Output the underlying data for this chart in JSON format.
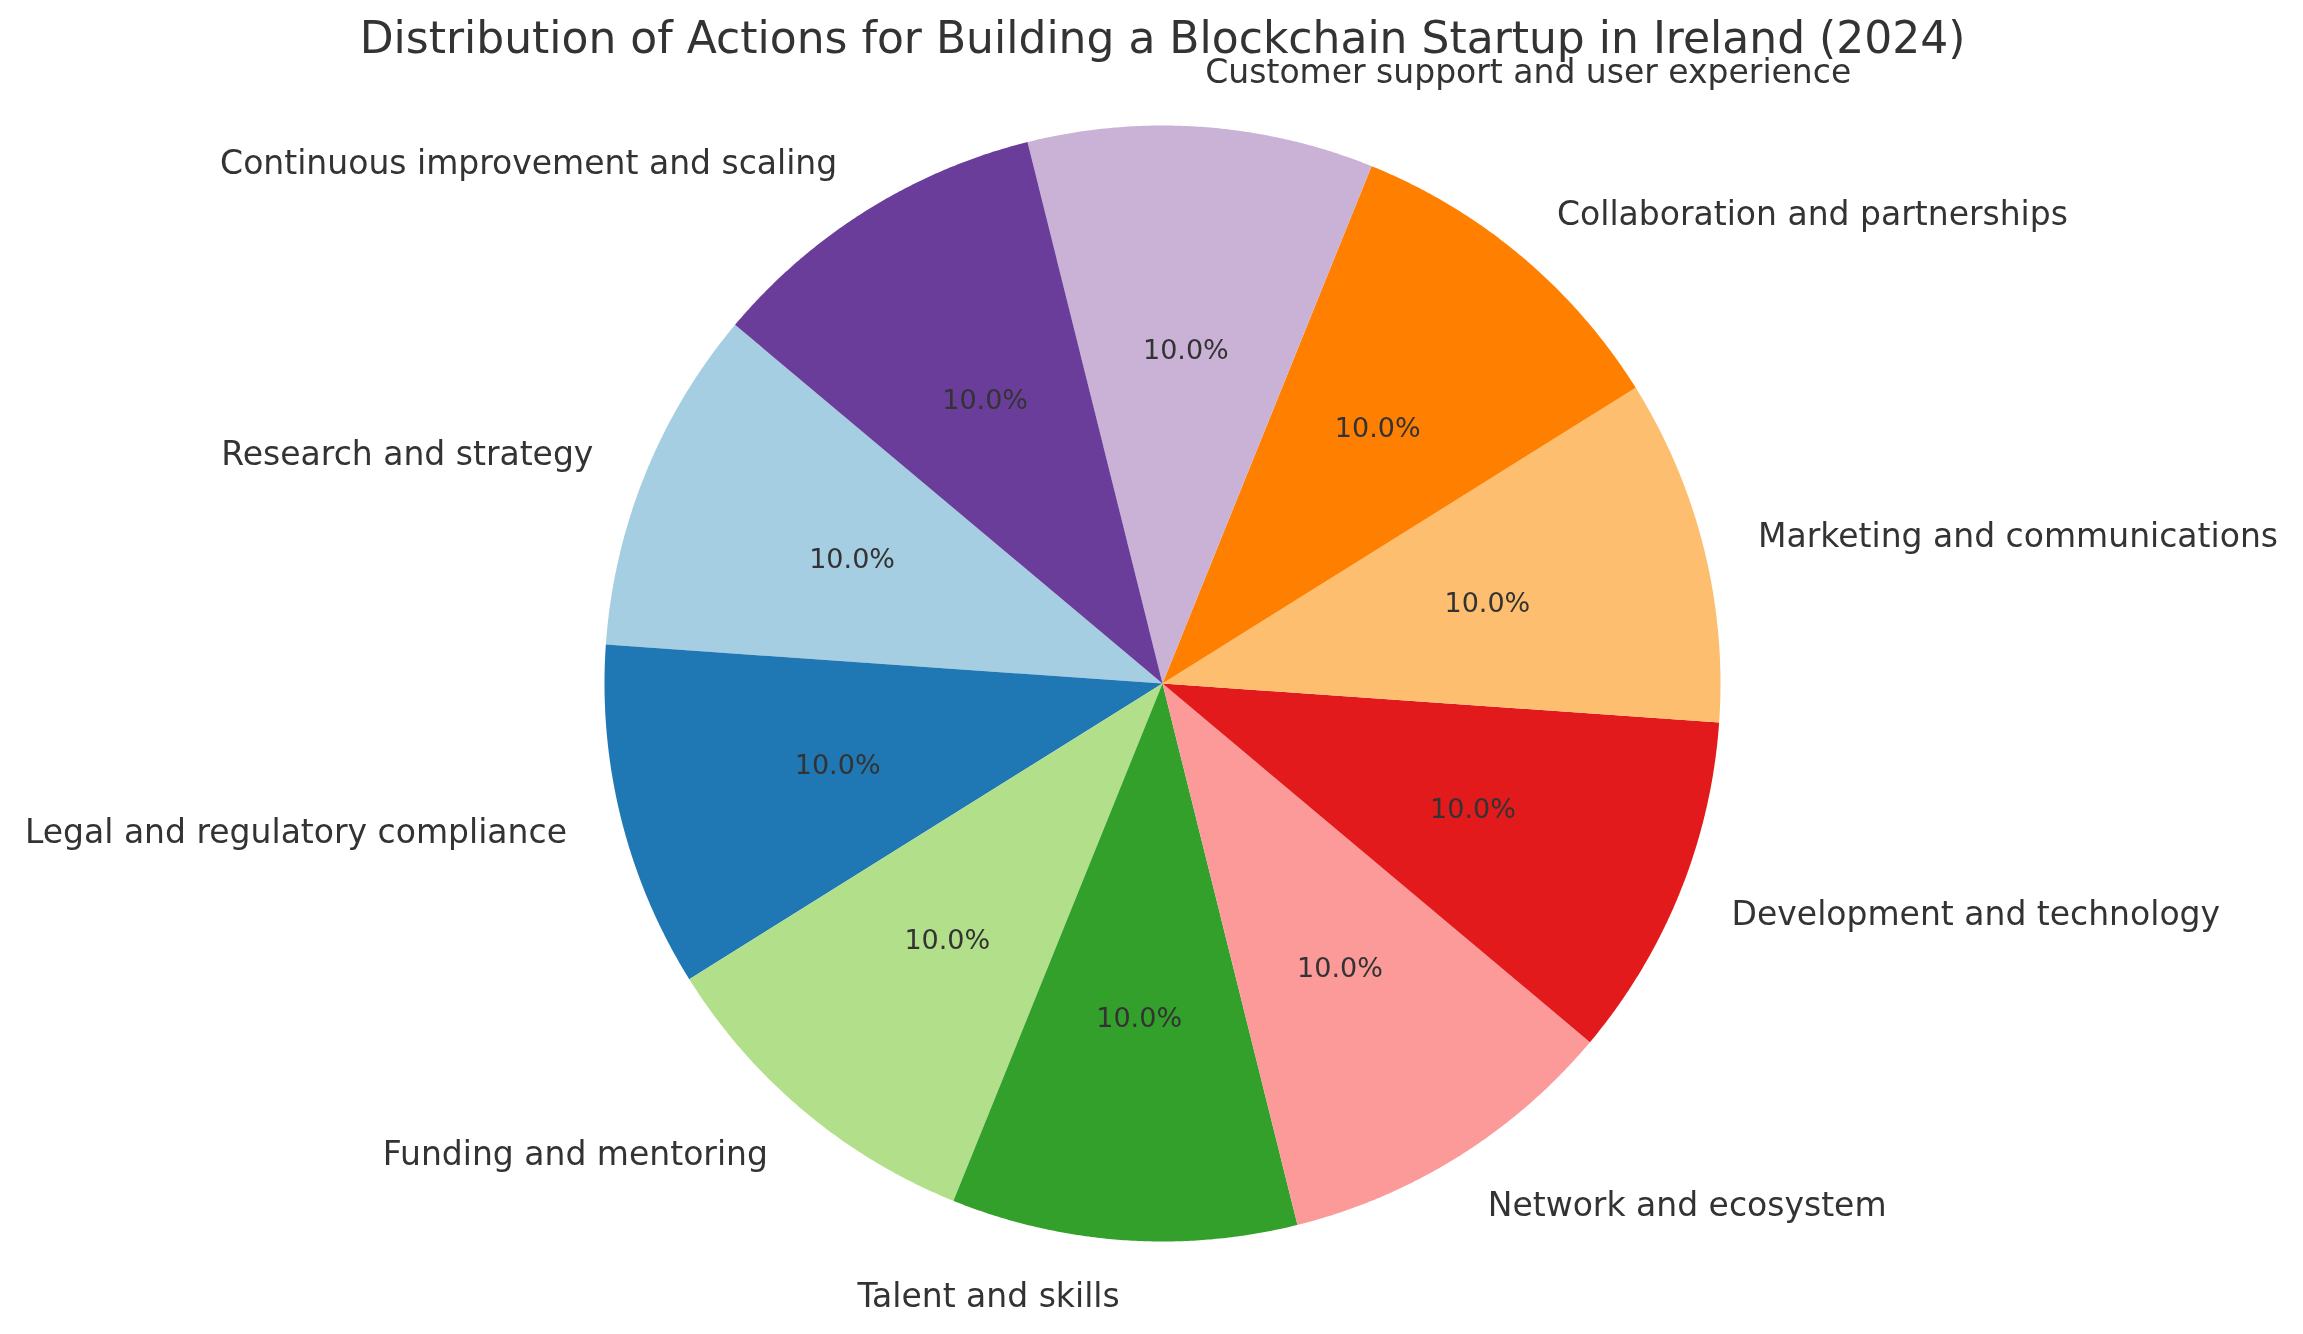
{
  "chart_data": {
    "type": "pie",
    "title": "Distribution of Actions for Building a Blockchain Startup in Ireland (2024)",
    "categories": [
      "Research and strategy",
      "Legal and regulatory compliance",
      "Funding and mentoring",
      "Talent and skills",
      "Network and ecosystem",
      "Development and technology",
      "Marketing and communications",
      "Collaboration and partnerships",
      "Customer support and user experience",
      "Continuous improvement and scaling"
    ],
    "values": [
      10,
      10,
      10,
      10,
      10,
      10,
      10,
      10,
      10,
      10
    ],
    "value_labels": [
      "10.0%",
      "10.0%",
      "10.0%",
      "10.0%",
      "10.0%",
      "10.0%",
      "10.0%",
      "10.0%",
      "10.0%",
      "10.0%"
    ],
    "colors": [
      "#a6cee3",
      "#1f78b4",
      "#b2df8a",
      "#33a02c",
      "#fb9a99",
      "#e31a1c",
      "#fdbf6f",
      "#ff7f00",
      "#cab2d6",
      "#6a3d9a"
    ]
  }
}
